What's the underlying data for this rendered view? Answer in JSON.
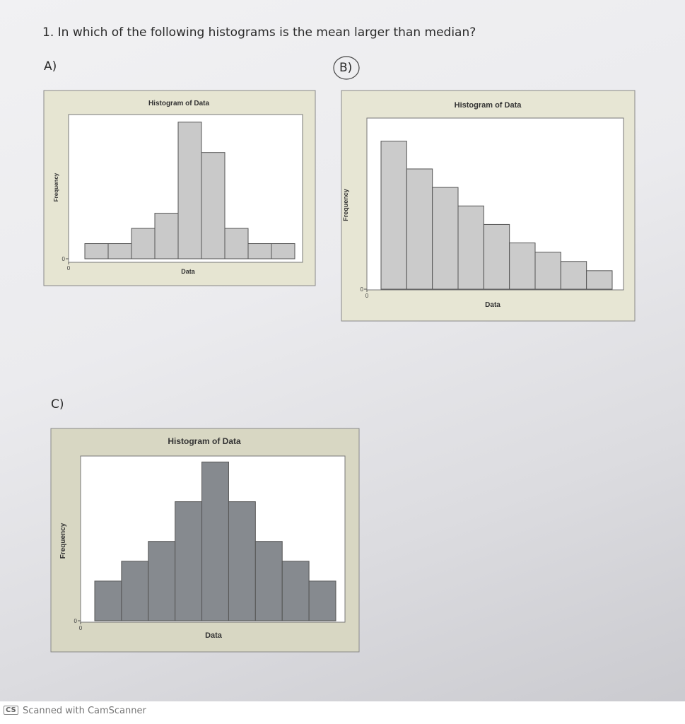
{
  "question": "1. In which of the following histograms is the mean larger than median?",
  "option_labels": [
    "A)",
    "B)",
    "C)"
  ],
  "chart_data": [
    {
      "type": "histogram",
      "title": "Histogram of Data",
      "y_label": "Frequency",
      "x_label": "Data",
      "values": [
        1,
        1,
        2,
        3,
        9,
        7,
        2,
        1,
        1
      ],
      "color": "#c9c9c9",
      "ylim": [
        0,
        9.5
      ],
      "yticks": [
        0
      ],
      "xticks": [
        0
      ]
    },
    {
      "type": "histogram",
      "title": "Histogram of Data",
      "y_label": "Frequency",
      "x_label": "Data",
      "values": [
        16,
        13,
        11,
        9,
        7,
        5,
        4,
        3,
        2
      ],
      "color": "#cbcbcb",
      "ylim": [
        0,
        18.5
      ],
      "yticks": [
        0
      ],
      "xticks": [
        0
      ]
    },
    {
      "type": "histogram",
      "title": "Histogram of Data",
      "y_label": "Frequency",
      "x_label": "Data",
      "values": [
        2,
        3,
        4,
        6,
        8,
        6,
        4,
        3,
        2
      ],
      "color": "#868a8f",
      "ylim": [
        0,
        8.3
      ],
      "yticks": [
        0
      ],
      "xticks": [
        0
      ]
    }
  ],
  "footer": {
    "badge": "CS",
    "text": "Scanned with CamScanner"
  }
}
